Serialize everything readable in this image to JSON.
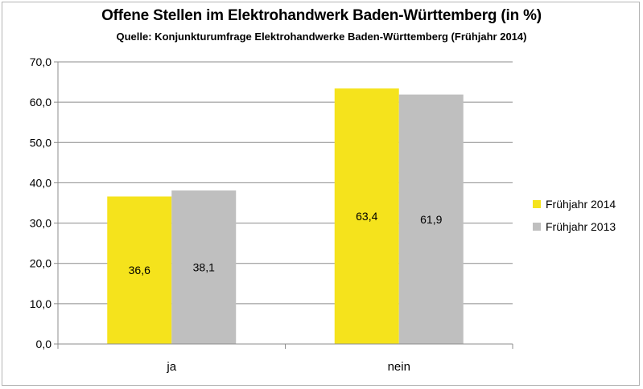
{
  "chart_data": {
    "type": "bar",
    "title": "Offene Stellen im Elektrohandwerk Baden-Württemberg (in %)",
    "subtitle": "Quelle: Konjunkturumfrage Elektrohandwerke Baden-Württemberg (Frühjahr 2014)",
    "categories": [
      "ja",
      "nein"
    ],
    "series": [
      {
        "name": "Frühjahr 2014",
        "color": "#f5e31c",
        "values": [
          36.6,
          63.4
        ],
        "labels": [
          "36,6",
          "63,4"
        ]
      },
      {
        "name": "Frühjahr 2013",
        "color": "#bfbfbf",
        "values": [
          38.1,
          61.9
        ],
        "labels": [
          "38,1",
          "61,9"
        ]
      }
    ],
    "ylim": [
      0,
      70
    ],
    "yticks": [
      "0,0",
      "10,0",
      "20,0",
      "30,0",
      "40,0",
      "50,0",
      "60,0",
      "70,0"
    ],
    "grid": true,
    "legend_position": "right",
    "xlabel": "",
    "ylabel": ""
  }
}
